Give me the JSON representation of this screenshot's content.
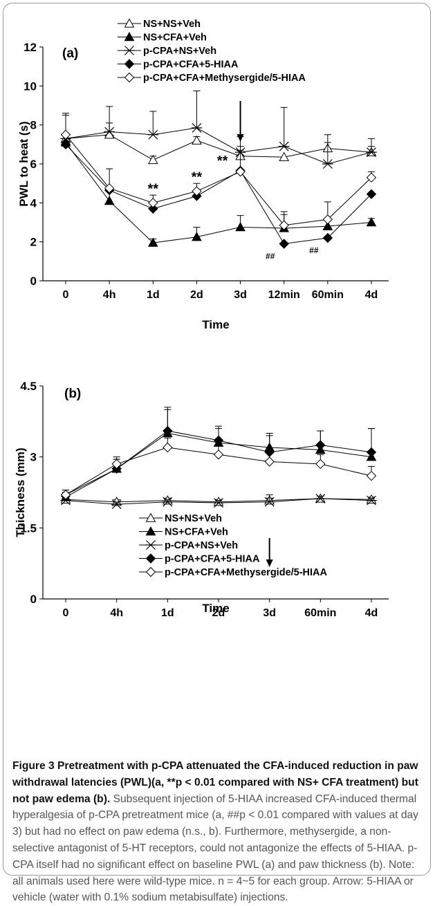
{
  "chart_data": [
    {
      "type": "line",
      "panel": "(a)",
      "xlabel": "Time",
      "ylabel": "PWL to heat (s)",
      "categories": [
        "0",
        "4h",
        "1d",
        "2d",
        "3d",
        "12min",
        "60min",
        "4d"
      ],
      "ylim": [
        0,
        12
      ],
      "yticks": [
        0,
        2,
        4,
        6,
        8,
        10,
        12
      ],
      "legend_position": "top",
      "series": [
        {
          "name": "NS+NS+Veh",
          "marker": "open-triangle",
          "values": [
            7.3,
            7.5,
            6.2,
            7.2,
            6.4,
            6.35,
            6.8,
            6.6
          ],
          "err": [
            0,
            0.6,
            0.2,
            0.2,
            0.3,
            0,
            0.3,
            0.3
          ]
        },
        {
          "name": "NS+CFA+Veh",
          "marker": "filled-triangle",
          "values": [
            7.1,
            4.1,
            1.95,
            2.25,
            2.75,
            2.7,
            2.8,
            3.0
          ],
          "err": [
            0,
            0.6,
            0.2,
            0.5,
            0.6,
            0.7,
            0.3,
            0.2
          ]
        },
        {
          "name": "p-CPA+NS+Veh",
          "marker": "asterisk",
          "values": [
            7.3,
            7.65,
            7.5,
            7.85,
            6.6,
            6.9,
            6.0,
            6.6
          ],
          "err": [
            1.3,
            1.3,
            1.2,
            1.9,
            0.8,
            2.0,
            1.5,
            0.7
          ]
        },
        {
          "name": "p-CPA+CFA+5-HIAA",
          "marker": "filled-diamond",
          "values": [
            7.0,
            4.65,
            3.7,
            4.35,
            5.65,
            1.9,
            2.2,
            4.45
          ],
          "err": [
            0,
            0,
            0,
            0,
            0,
            0,
            0,
            0
          ]
        },
        {
          "name": "p-CPA+CFA+Methysergide/5-HIAA",
          "marker": "open-diamond",
          "values": [
            7.5,
            4.75,
            4.0,
            4.6,
            5.6,
            2.85,
            3.15,
            5.3
          ],
          "err": [
            1.0,
            1.0,
            0.4,
            0.4,
            1.3,
            0.7,
            0.9,
            0.3
          ]
        }
      ],
      "annotations": [
        {
          "text": "**",
          "x": "1d"
        },
        {
          "text": "**",
          "x": "2d"
        },
        {
          "text": "**",
          "x": "3d"
        },
        {
          "text": "##",
          "x": "12min"
        },
        {
          "text": "##",
          "x": "60min"
        }
      ],
      "arrow_at": "3d"
    },
    {
      "type": "line",
      "panel": "(b)",
      "xlabel": "Time",
      "ylabel": "Thickness (mm)",
      "categories": [
        "0",
        "4h",
        "1d",
        "2d",
        "3d",
        "60min",
        "4d"
      ],
      "ylim": [
        0,
        4.5
      ],
      "yticks": [
        0,
        1.5,
        3,
        4.5
      ],
      "legend_position": "bottom-left",
      "series": [
        {
          "name": "NS+NS+Veh",
          "marker": "open-triangle",
          "values": [
            2.1,
            2.05,
            2.08,
            2.05,
            2.08,
            2.12,
            2.1
          ],
          "err": [
            0.05,
            0.05,
            0.05,
            0.05,
            0.05,
            0.05,
            0.05
          ]
        },
        {
          "name": "NS+CFA+Veh",
          "marker": "filled-triangle",
          "values": [
            2.15,
            2.75,
            3.5,
            3.3,
            3.2,
            3.15,
            3.0
          ],
          "err": [
            0.1,
            0.2,
            0.5,
            0.3,
            0.3,
            0.4,
            0.6
          ]
        },
        {
          "name": "p-CPA+NS+Veh",
          "marker": "asterisk",
          "values": [
            2.08,
            2.0,
            2.05,
            2.03,
            2.05,
            2.12,
            2.08
          ],
          "err": [
            0.05,
            0.05,
            0.05,
            0.05,
            0.15,
            0.05,
            0.05
          ]
        },
        {
          "name": "p-CPA+CFA+5-HIAA",
          "marker": "filled-diamond",
          "values": [
            2.2,
            2.75,
            3.55,
            3.35,
            3.1,
            3.25,
            3.1
          ],
          "err": [
            0.1,
            0.2,
            0.5,
            0.3,
            0.35,
            0.3,
            0.5
          ]
        },
        {
          "name": "p-CPA+CFA+Methysergide/5-HIAA",
          "marker": "open-diamond",
          "values": [
            2.2,
            2.85,
            3.2,
            3.05,
            2.9,
            2.85,
            2.6
          ],
          "err": [
            0.1,
            0.15,
            0.2,
            0.2,
            0.2,
            0.2,
            0.2
          ]
        }
      ],
      "arrow_at": "3d"
    }
  ],
  "caption": {
    "title": "Figure 3 Pretreatment with p-CPA attenuated the CFA-induced reduction in paw withdrawal latencies (PWL)(a, **p < 0.01 compared with NS+ CFA treatment) but not paw edema (b).",
    "body": "Subsequent injection of 5-HIAA increased CFA-induced thermal hyperalgesia of p-CPA pretreatment mice (a, ##p < 0.01 compared with values at day 3) but had no effect on paw edema (n.s., b). Furthermore, methysergide, a non-selective antagonist of 5-HT receptors, could not antagonize the effects of 5-HIAA. p-CPA itself had no significant effect on baseline PWL (a) and paw thickness (b). Note: all animals used here were wild-type mice. n = 4~5 for each group. Arrow: 5-HIAA or vehicle (water with 0.1% sodium metabisulfate) injections."
  }
}
